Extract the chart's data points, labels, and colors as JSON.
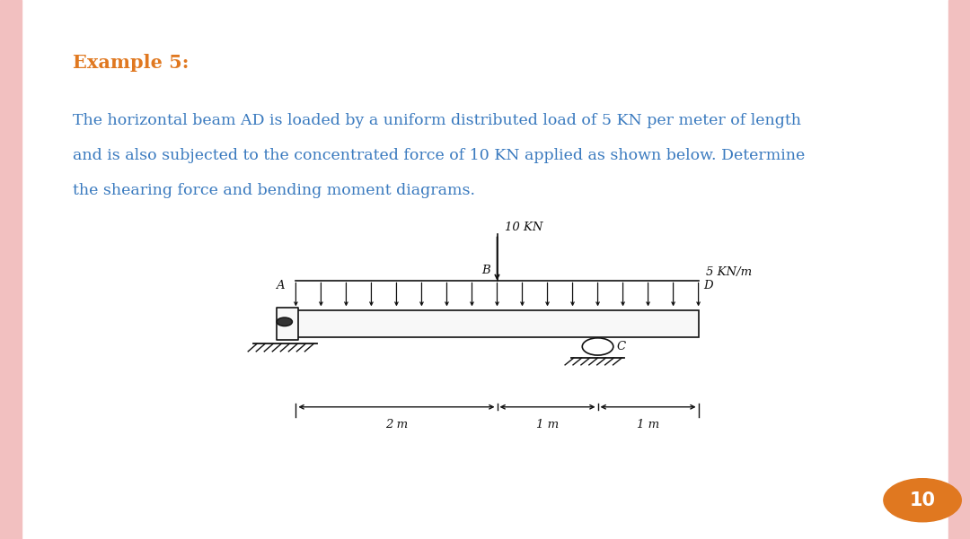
{
  "bg_color": "#ffffff",
  "border_color": "#f2c0c0",
  "title": "Example 5:",
  "title_color": "#e07820",
  "title_fontsize": 15,
  "body_text_line1": "The horizontal beam AD is loaded by a uniform distributed load of 5 KN per meter of length",
  "body_text_line2": "and is also subjected to the concentrated force of 10 KN applied as shown below. Determine",
  "body_text_line3": "the shearing force and bending moment diagrams.",
  "body_color": "#3a7abf",
  "body_fontsize": 12.5,
  "page_number": "10",
  "page_num_color": "#e07820",
  "beam_color": "#111111",
  "label_A": "A",
  "label_B": "B",
  "label_C": "C",
  "label_D": "D",
  "dist_load_label": "5 KN/m",
  "conc_force_label": "10 KN",
  "dim_2m": "2 m",
  "dim_1m_1": "1 m",
  "dim_1m_2": "1 m",
  "bx0": 0.305,
  "bx1": 0.72,
  "by0": 0.375,
  "by1": 0.425
}
